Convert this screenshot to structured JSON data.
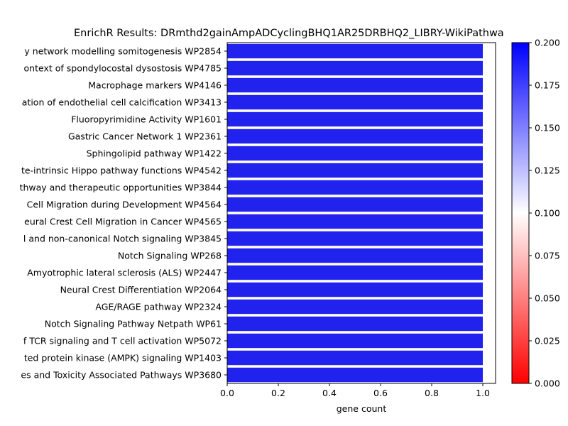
{
  "chart_data": {
    "type": "bar",
    "orientation": "horizontal",
    "title": "EnrichR Results: DRmthd2gainAmpADCyclingBHQ1AR25DRBHQ2_LIBRY-WikiPathwa",
    "xlabel": "gene count",
    "ylabel": "",
    "xlim": [
      0,
      1.05
    ],
    "xticks": [
      "0.0",
      "0.2",
      "0.4",
      "0.6",
      "0.8",
      "1.0"
    ],
    "categories": [
      "y network modelling somitogenesis  WP2854",
      "ontext of spondylocostal dysostosis WP4785",
      "Macrophage markers WP4146",
      "ation of endothelial cell calcification WP3413",
      "Fluoropyrimidine Activity WP1601",
      "Gastric Cancer Network 1 WP2361",
      "Sphingolipid pathway WP1422",
      "te-intrinsic Hippo pathway functions WP4542",
      "thway and therapeutic opportunities WP3844",
      "Cell Migration during Development WP4564",
      "eural Crest Cell Migration in Cancer WP4565",
      "l and non-canonical Notch signaling WP3845",
      "Notch Signaling WP268",
      "Amyotrophic lateral sclerosis (ALS) WP2447",
      "Neural Crest Differentiation WP2064",
      "AGE/RAGE pathway WP2324",
      "Notch Signaling Pathway Netpath WP61",
      "f TCR signaling and T cell activation WP5072",
      "ted protein kinase (AMPK) signaling WP1403",
      "es and Toxicity Associated Pathways WP3680"
    ],
    "values": [
      1,
      1,
      1,
      1,
      1,
      1,
      1,
      1,
      1,
      1,
      1,
      1,
      1,
      1,
      1,
      1,
      1,
      1,
      1,
      1
    ],
    "bar_color": "#2222ee",
    "colorbar": {
      "range": [
        0.0,
        0.2
      ],
      "ticks": [
        "0.000",
        "0.025",
        "0.050",
        "0.075",
        "0.100",
        "0.125",
        "0.150",
        "0.175",
        "0.200"
      ],
      "colors": [
        "#ff0000",
        "#ffffff",
        "#0000ff"
      ]
    },
    "grid": false,
    "legend": "none"
  }
}
